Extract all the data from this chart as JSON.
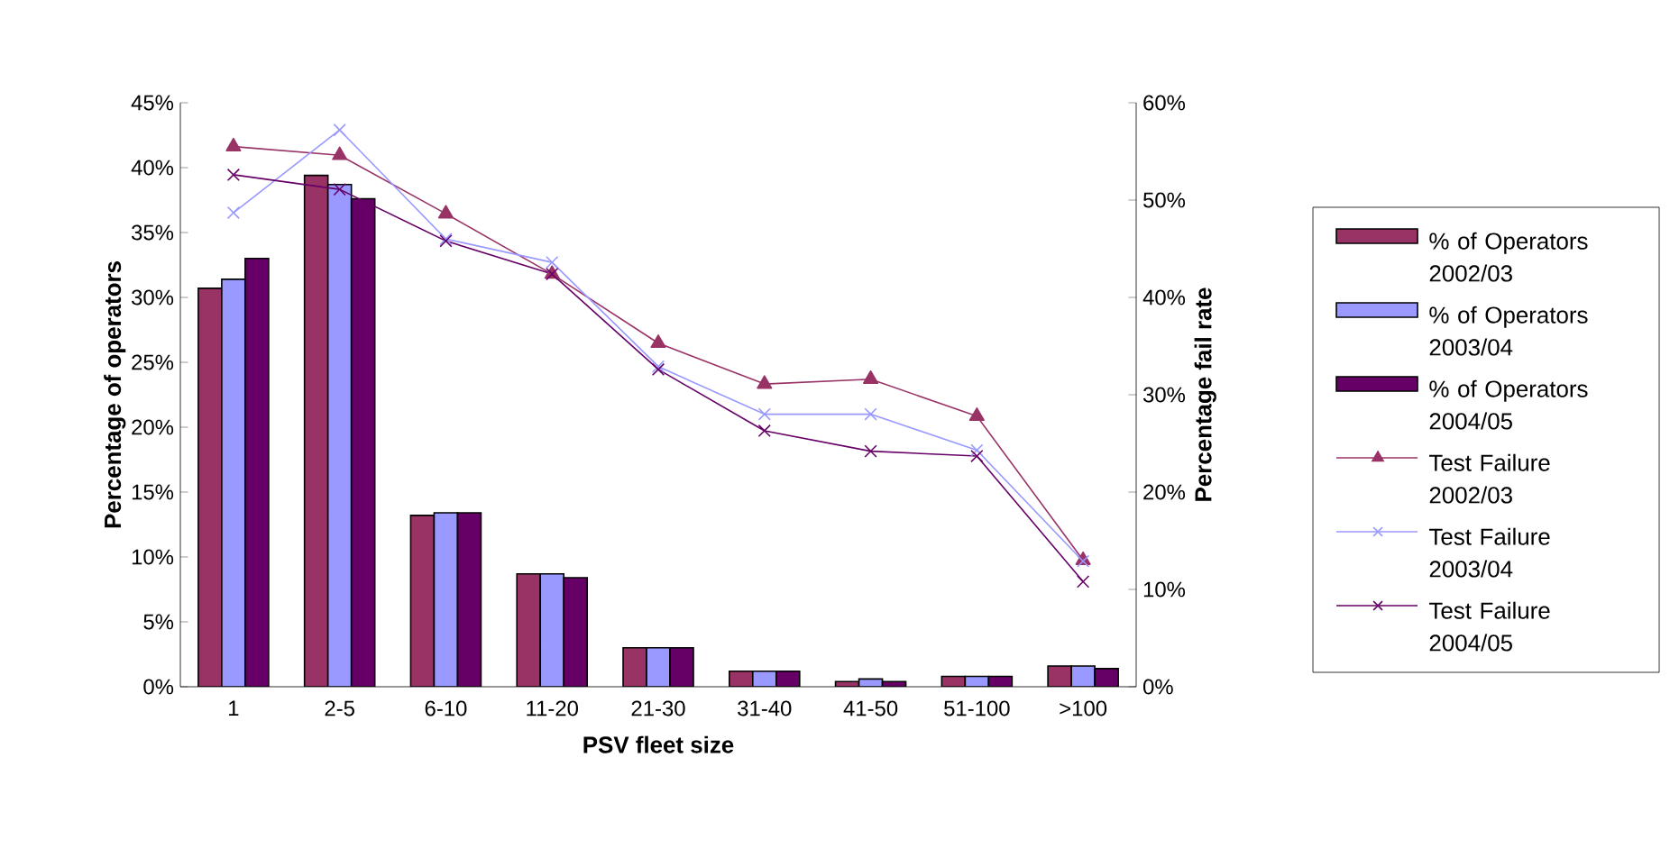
{
  "chart_data": {
    "type": "bar",
    "xlabel": "PSV fleet size",
    "ylabel": "Percentage of operators",
    "y2label": "Percentage fail rate",
    "categories": [
      "1",
      "2-5",
      "6-10",
      "11-20",
      "21-30",
      "31-40",
      "41-50",
      "51-100",
      ">100"
    ],
    "series": [
      {
        "name": "% of Operators 2002/03",
        "color": "#993366",
        "values": [
          30.7,
          39.4,
          13.2,
          8.7,
          3.0,
          1.2,
          0.4,
          0.8,
          1.6
        ]
      },
      {
        "name": "% of Operators 2003/04",
        "color": "#9999ff",
        "values": [
          31.4,
          38.7,
          13.4,
          8.7,
          3.0,
          1.2,
          0.6,
          0.8,
          1.6
        ]
      },
      {
        "name": "% of Operators 2004/05",
        "color": "#660066",
        "values": [
          33.0,
          37.6,
          13.4,
          8.4,
          3.0,
          1.2,
          0.4,
          0.8,
          1.4
        ]
      },
      {
        "name": "Test Failure 2002/03",
        "type": "line",
        "axis": "y2",
        "marker": "triangle",
        "color": "#993366",
        "values": [
          55.5,
          54.6,
          48.6,
          42.4,
          35.3,
          31.1,
          31.6,
          27.8,
          13.0
        ]
      },
      {
        "name": "Test Failure 2003/04",
        "type": "line",
        "axis": "y2",
        "marker": "cross",
        "color": "#9999ff",
        "values": [
          48.7,
          57.2,
          46.0,
          43.6,
          32.9,
          28.0,
          28.0,
          24.3,
          12.9
        ]
      },
      {
        "name": "Test Failure 2004/05",
        "type": "line",
        "axis": "y2",
        "marker": "cross",
        "color": "#660066",
        "values": [
          52.6,
          51.1,
          45.8,
          42.4,
          32.6,
          26.3,
          24.2,
          23.7,
          10.8
        ]
      }
    ],
    "ylim": [
      0,
      45
    ],
    "yticks": [
      {
        "value": 0,
        "label": "0%"
      },
      {
        "value": 5,
        "label": "5%"
      },
      {
        "value": 10,
        "label": "10%"
      },
      {
        "value": 15,
        "label": "15%"
      },
      {
        "value": 20,
        "label": "20%"
      },
      {
        "value": 25,
        "label": "25%"
      },
      {
        "value": 30,
        "label": "30%"
      },
      {
        "value": 35,
        "label": "35%"
      },
      {
        "value": 40,
        "label": "40%"
      },
      {
        "value": 45,
        "label": "45%"
      }
    ],
    "y2lim": [
      0,
      60
    ],
    "y2ticks": [
      {
        "value": 0,
        "label": "0%"
      },
      {
        "value": 10,
        "label": "10%"
      },
      {
        "value": 20,
        "label": "20%"
      },
      {
        "value": 30,
        "label": "30%"
      },
      {
        "value": 40,
        "label": "40%"
      },
      {
        "value": 50,
        "label": "50%"
      },
      {
        "value": 60,
        "label": "60%"
      }
    ],
    "grid": false,
    "legend": "right"
  }
}
